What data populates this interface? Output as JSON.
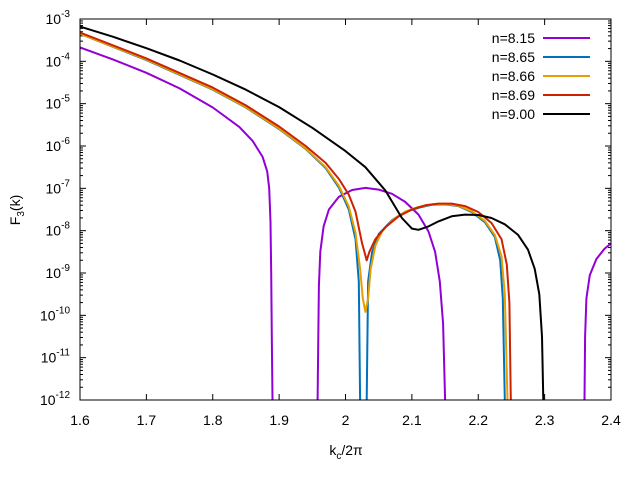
{
  "chart_data": {
    "type": "line",
    "title": "",
    "xlabel": {
      "base": "k",
      "sub": "c",
      "rest": "/2π"
    },
    "ylabel": {
      "base": "F",
      "sub": "3",
      "rest": "(k)"
    },
    "xlim": [
      1.6,
      2.4
    ],
    "ylim_log10": [
      -12,
      -3
    ],
    "yscale": "log",
    "x_ticks": [
      "1.6",
      "1.7",
      "1.8",
      "1.9",
      "2",
      "2.1",
      "2.2",
      "2.3",
      "2.4"
    ],
    "x_tick_values": [
      1.6,
      1.7,
      1.8,
      1.9,
      2.0,
      2.1,
      2.2,
      2.3,
      2.4
    ],
    "y_ticks": [
      {
        "base": "10",
        "exp": "-3"
      },
      {
        "base": "10",
        "exp": "-4"
      },
      {
        "base": "10",
        "exp": "-5"
      },
      {
        "base": "10",
        "exp": "-6"
      },
      {
        "base": "10",
        "exp": "-7"
      },
      {
        "base": "10",
        "exp": "-8"
      },
      {
        "base": "10",
        "exp": "-9"
      },
      {
        "base": "10",
        "exp": "-10"
      },
      {
        "base": "10",
        "exp": "-11"
      },
      {
        "base": "10",
        "exp": "-12"
      }
    ],
    "y_tick_values_log10": [
      -3,
      -4,
      -5,
      -6,
      -7,
      -8,
      -9,
      -10,
      -11,
      -12
    ],
    "legend_position": "top-right",
    "series": [
      {
        "name": "n=8.15",
        "color": "#9400d3",
        "segments": [
          [
            [
              1.6,
              -3.67
            ],
            [
              1.65,
              -3.96
            ],
            [
              1.7,
              -4.27
            ],
            [
              1.75,
              -4.64
            ],
            [
              1.8,
              -5.09
            ],
            [
              1.84,
              -5.55
            ],
            [
              1.86,
              -5.88
            ],
            [
              1.875,
              -6.25
            ],
            [
              1.882,
              -6.6
            ],
            [
              1.885,
              -7
            ],
            [
              1.887,
              -7.8
            ],
            [
              1.888,
              -9
            ],
            [
              1.889,
              -10.5
            ],
            [
              1.89,
              -12
            ]
          ],
          [
            [
              1.958,
              -12
            ],
            [
              1.959,
              -10.5
            ],
            [
              1.96,
              -9.3
            ],
            [
              1.962,
              -8.5
            ],
            [
              1.967,
              -7.9
            ],
            [
              1.975,
              -7.5
            ],
            [
              1.99,
              -7.2
            ],
            [
              2.01,
              -7.04
            ],
            [
              2.03,
              -6.99
            ],
            [
              2.05,
              -7.03
            ],
            [
              2.07,
              -7.13
            ],
            [
              2.09,
              -7.32
            ],
            [
              2.11,
              -7.62
            ],
            [
              2.125,
              -8.02
            ],
            [
              2.135,
              -8.5
            ],
            [
              2.142,
              -9.2
            ],
            [
              2.147,
              -10.2
            ],
            [
              2.15,
              -12
            ]
          ],
          [
            [
              2.36,
              -12
            ],
            [
              2.361,
              -10.5
            ],
            [
              2.363,
              -9.6
            ],
            [
              2.368,
              -9.05
            ],
            [
              2.378,
              -8.67
            ],
            [
              2.39,
              -8.43
            ],
            [
              2.4,
              -8.3
            ]
          ]
        ]
      },
      {
        "name": "n=8.65",
        "color": "#0072bd",
        "segments": [
          [
            [
              1.6,
              -3.35
            ],
            [
              1.7,
              -3.97
            ],
            [
              1.8,
              -4.67
            ],
            [
              1.85,
              -5.09
            ],
            [
              1.9,
              -5.6
            ],
            [
              1.94,
              -6.07
            ],
            [
              1.97,
              -6.52
            ],
            [
              1.99,
              -6.98
            ],
            [
              2.005,
              -7.5
            ],
            [
              2.015,
              -8.2
            ],
            [
              2.02,
              -9.2
            ],
            [
              2.022,
              -12
            ]
          ],
          [
            [
              2.032,
              -12
            ],
            [
              2.034,
              -9.2
            ],
            [
              2.04,
              -8.5
            ],
            [
              2.05,
              -8.08
            ],
            [
              2.07,
              -7.75
            ],
            [
              2.09,
              -7.56
            ],
            [
              2.11,
              -7.46
            ],
            [
              2.13,
              -7.39
            ],
            [
              2.15,
              -7.38
            ],
            [
              2.17,
              -7.42
            ],
            [
              2.19,
              -7.56
            ],
            [
              2.21,
              -7.8
            ],
            [
              2.225,
              -8.15
            ],
            [
              2.233,
              -8.7
            ],
            [
              2.237,
              -9.6
            ],
            [
              2.24,
              -12
            ]
          ]
        ]
      },
      {
        "name": "n=8.66",
        "color": "#e69f00",
        "segments": [
          [
            [
              1.6,
              -3.35
            ],
            [
              1.7,
              -3.96
            ],
            [
              1.8,
              -4.66
            ],
            [
              1.85,
              -5.08
            ],
            [
              1.9,
              -5.59
            ],
            [
              1.94,
              -6.06
            ],
            [
              1.97,
              -6.5
            ],
            [
              1.99,
              -6.94
            ],
            [
              2.005,
              -7.43
            ],
            [
              2.015,
              -8.05
            ],
            [
              2.022,
              -8.9
            ],
            [
              2.026,
              -9.6
            ],
            [
              2.03,
              -9.92
            ],
            [
              2.034,
              -9.6
            ],
            [
              2.038,
              -8.9
            ],
            [
              2.045,
              -8.35
            ],
            [
              2.055,
              -8.02
            ],
            [
              2.07,
              -7.76
            ],
            [
              2.09,
              -7.55
            ],
            [
              2.11,
              -7.44
            ],
            [
              2.13,
              -7.38
            ],
            [
              2.15,
              -7.37
            ],
            [
              2.17,
              -7.41
            ],
            [
              2.19,
              -7.54
            ],
            [
              2.21,
              -7.77
            ],
            [
              2.225,
              -8.1
            ],
            [
              2.235,
              -8.6
            ],
            [
              2.24,
              -9.5
            ],
            [
              2.244,
              -12
            ]
          ]
        ]
      },
      {
        "name": "n=8.69",
        "color": "#cc2200",
        "segments": [
          [
            [
              1.6,
              -3.32
            ],
            [
              1.7,
              -3.93
            ],
            [
              1.8,
              -4.62
            ],
            [
              1.85,
              -5.04
            ],
            [
              1.9,
              -5.54
            ],
            [
              1.94,
              -6.0
            ],
            [
              1.97,
              -6.4
            ],
            [
              1.99,
              -6.78
            ],
            [
              2.005,
              -7.15
            ],
            [
              2.015,
              -7.55
            ],
            [
              2.025,
              -8.3
            ],
            [
              2.032,
              -8.7
            ],
            [
              2.036,
              -8.5
            ],
            [
              2.045,
              -8.2
            ],
            [
              2.06,
              -7.92
            ],
            [
              2.08,
              -7.66
            ],
            [
              2.1,
              -7.5
            ],
            [
              2.12,
              -7.4
            ],
            [
              2.14,
              -7.36
            ],
            [
              2.16,
              -7.36
            ],
            [
              2.18,
              -7.42
            ],
            [
              2.2,
              -7.56
            ],
            [
              2.22,
              -7.82
            ],
            [
              2.235,
              -8.2
            ],
            [
              2.243,
              -8.8
            ],
            [
              2.247,
              -9.7
            ],
            [
              2.249,
              -12
            ]
          ]
        ]
      },
      {
        "name": "n=9.00",
        "color": "#000000",
        "segments": [
          [
            [
              1.6,
              -3.18
            ],
            [
              1.65,
              -3.42
            ],
            [
              1.7,
              -3.69
            ],
            [
              1.75,
              -3.98
            ],
            [
              1.8,
              -4.31
            ],
            [
              1.85,
              -4.67
            ],
            [
              1.9,
              -5.08
            ],
            [
              1.95,
              -5.57
            ],
            [
              2.0,
              -6.12
            ],
            [
              2.03,
              -6.5
            ],
            [
              2.06,
              -7.05
            ],
            [
              2.085,
              -7.7
            ],
            [
              2.1,
              -7.95
            ],
            [
              2.11,
              -7.98
            ],
            [
              2.125,
              -7.9
            ],
            [
              2.14,
              -7.78
            ],
            [
              2.16,
              -7.66
            ],
            [
              2.18,
              -7.62
            ],
            [
              2.2,
              -7.63
            ],
            [
              2.22,
              -7.7
            ],
            [
              2.24,
              -7.85
            ],
            [
              2.26,
              -8.1
            ],
            [
              2.275,
              -8.45
            ],
            [
              2.285,
              -8.9
            ],
            [
              2.292,
              -9.5
            ],
            [
              2.296,
              -10.5
            ],
            [
              2.298,
              -12
            ]
          ]
        ]
      }
    ]
  }
}
